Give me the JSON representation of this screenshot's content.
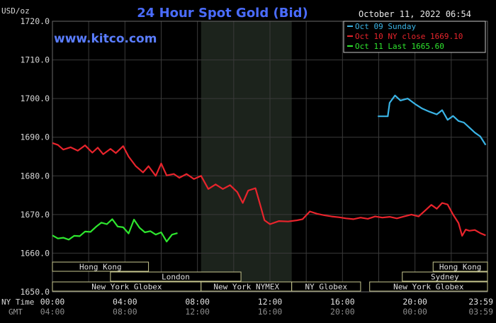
{
  "header": {
    "title": "24 Hour Spot Gold (Bid)",
    "unit_label": "USD/oz",
    "timestamp": "October 11, 2022 06:54",
    "watermark": "www.kitco.com"
  },
  "sessions": {
    "row1": [
      "Hong Kong",
      "Hong Kong"
    ],
    "row2": [
      "London",
      "Sydney"
    ],
    "row3": [
      "New York Globex",
      "New York NYMEX",
      "NY Globex",
      "New York Globex"
    ]
  },
  "time_axis": {
    "ny_label": "NY Time",
    "gmt_label": "GMT",
    "ny_ticks": [
      "00:00",
      "04:00",
      "08:00",
      "12:00",
      "16:00",
      "20:00",
      "23:59"
    ],
    "gmt_ticks": [
      "04:00",
      "08:00",
      "12:00",
      "16:00",
      "20:00",
      "00:00",
      "03:59"
    ]
  },
  "colors": {
    "background": "#000000",
    "grid": "#3a3a3a",
    "axis_text": "#d8d8d8",
    "title": "#4a6cff",
    "watermark": "#5a7dff",
    "shaded_session": "#1c231c",
    "session_box_border": "#c8c890",
    "session_box_text": "#e0e0e0",
    "legend_border": "#c8c8c8"
  },
  "chart_data": {
    "type": "line",
    "title": "24 Hour Spot Gold (Bid)",
    "ylabel": "USD/oz",
    "xlabel": "NY Time",
    "ylim": [
      1650,
      1720
    ],
    "xlim": [
      0,
      24
    ],
    "y_ticks": [
      "1650.0",
      "1660.0",
      "1670.0",
      "1680.0",
      "1690.0",
      "1700.0",
      "1710.0",
      "1720.0"
    ],
    "grid": true,
    "legend_position": "top-right",
    "shaded_region": [
      8.2,
      13.2
    ],
    "series": [
      {
        "name": "Oct 09 Sunday",
        "color": "#3ab4e6",
        "x": [
          17.95,
          18.5,
          18.6,
          18.9,
          19.2,
          19.6,
          20.0,
          20.4,
          20.8,
          21.2,
          21.5,
          21.8,
          22.1,
          22.4,
          22.7,
          23.0,
          23.3,
          23.6,
          23.9
        ],
        "y": [
          1695.4,
          1695.4,
          1698.9,
          1700.8,
          1699.5,
          1700.0,
          1698.6,
          1697.4,
          1696.6,
          1695.9,
          1697.0,
          1694.5,
          1695.5,
          1694.2,
          1693.8,
          1692.5,
          1691.2,
          1690.2,
          1688.0
        ]
      },
      {
        "name": "Oct 10 NY close 1669.10",
        "color": "#e8242c",
        "x": [
          0,
          0.3,
          0.6,
          1.0,
          1.4,
          1.8,
          2.2,
          2.5,
          2.8,
          3.2,
          3.5,
          3.9,
          4.2,
          4.6,
          5.0,
          5.3,
          5.7,
          6.0,
          6.3,
          6.7,
          7.0,
          7.4,
          7.8,
          8.2,
          8.6,
          9.0,
          9.4,
          9.8,
          10.2,
          10.5,
          10.8,
          11.2,
          11.4,
          11.7,
          12.0,
          12.5,
          13.0,
          13.5,
          13.8,
          14.2,
          14.6,
          15.0,
          15.4,
          15.8,
          16.2,
          16.6,
          17.0,
          17.4,
          17.8,
          18.2,
          18.6,
          19.0,
          19.4,
          19.8,
          20.2,
          20.6,
          20.9,
          21.2,
          21.5,
          21.8,
          22.1,
          22.4,
          22.6,
          22.8,
          23.0,
          23.3,
          23.6,
          23.9
        ],
        "y": [
          1688.5,
          1688.0,
          1686.8,
          1687.4,
          1686.5,
          1687.9,
          1686.0,
          1687.3,
          1685.6,
          1687.0,
          1685.9,
          1687.7,
          1685.0,
          1682.5,
          1680.9,
          1682.5,
          1680.0,
          1683.2,
          1680.1,
          1680.5,
          1679.5,
          1680.5,
          1679.2,
          1680.0,
          1676.6,
          1677.8,
          1676.6,
          1677.6,
          1675.8,
          1673.0,
          1676.2,
          1676.8,
          1673.5,
          1668.5,
          1667.5,
          1668.3,
          1668.2,
          1668.5,
          1668.8,
          1670.8,
          1670.2,
          1669.8,
          1669.5,
          1669.3,
          1669.0,
          1668.8,
          1669.2,
          1668.9,
          1669.5,
          1669.2,
          1669.4,
          1669.0,
          1669.5,
          1670.0,
          1669.5,
          1671.2,
          1672.5,
          1671.5,
          1673.0,
          1672.6,
          1670.0,
          1667.8,
          1664.5,
          1666.1,
          1665.8,
          1666.0,
          1665.2,
          1664.6
        ]
      },
      {
        "name": "Oct 11 Last 1665.60",
        "color": "#2ee62e",
        "x": [
          0,
          0.3,
          0.6,
          0.9,
          1.2,
          1.5,
          1.8,
          2.1,
          2.4,
          2.7,
          3.0,
          3.3,
          3.6,
          3.9,
          4.2,
          4.5,
          4.8,
          5.1,
          5.4,
          5.7,
          6.0,
          6.3,
          6.6,
          6.9
        ],
        "y": [
          1664.6,
          1663.8,
          1664.0,
          1663.5,
          1664.5,
          1664.4,
          1665.6,
          1665.5,
          1666.8,
          1667.9,
          1667.5,
          1668.8,
          1666.9,
          1666.7,
          1665.1,
          1668.7,
          1666.6,
          1665.4,
          1665.7,
          1664.8,
          1665.4,
          1663.0,
          1664.8,
          1665.2
        ]
      }
    ]
  }
}
